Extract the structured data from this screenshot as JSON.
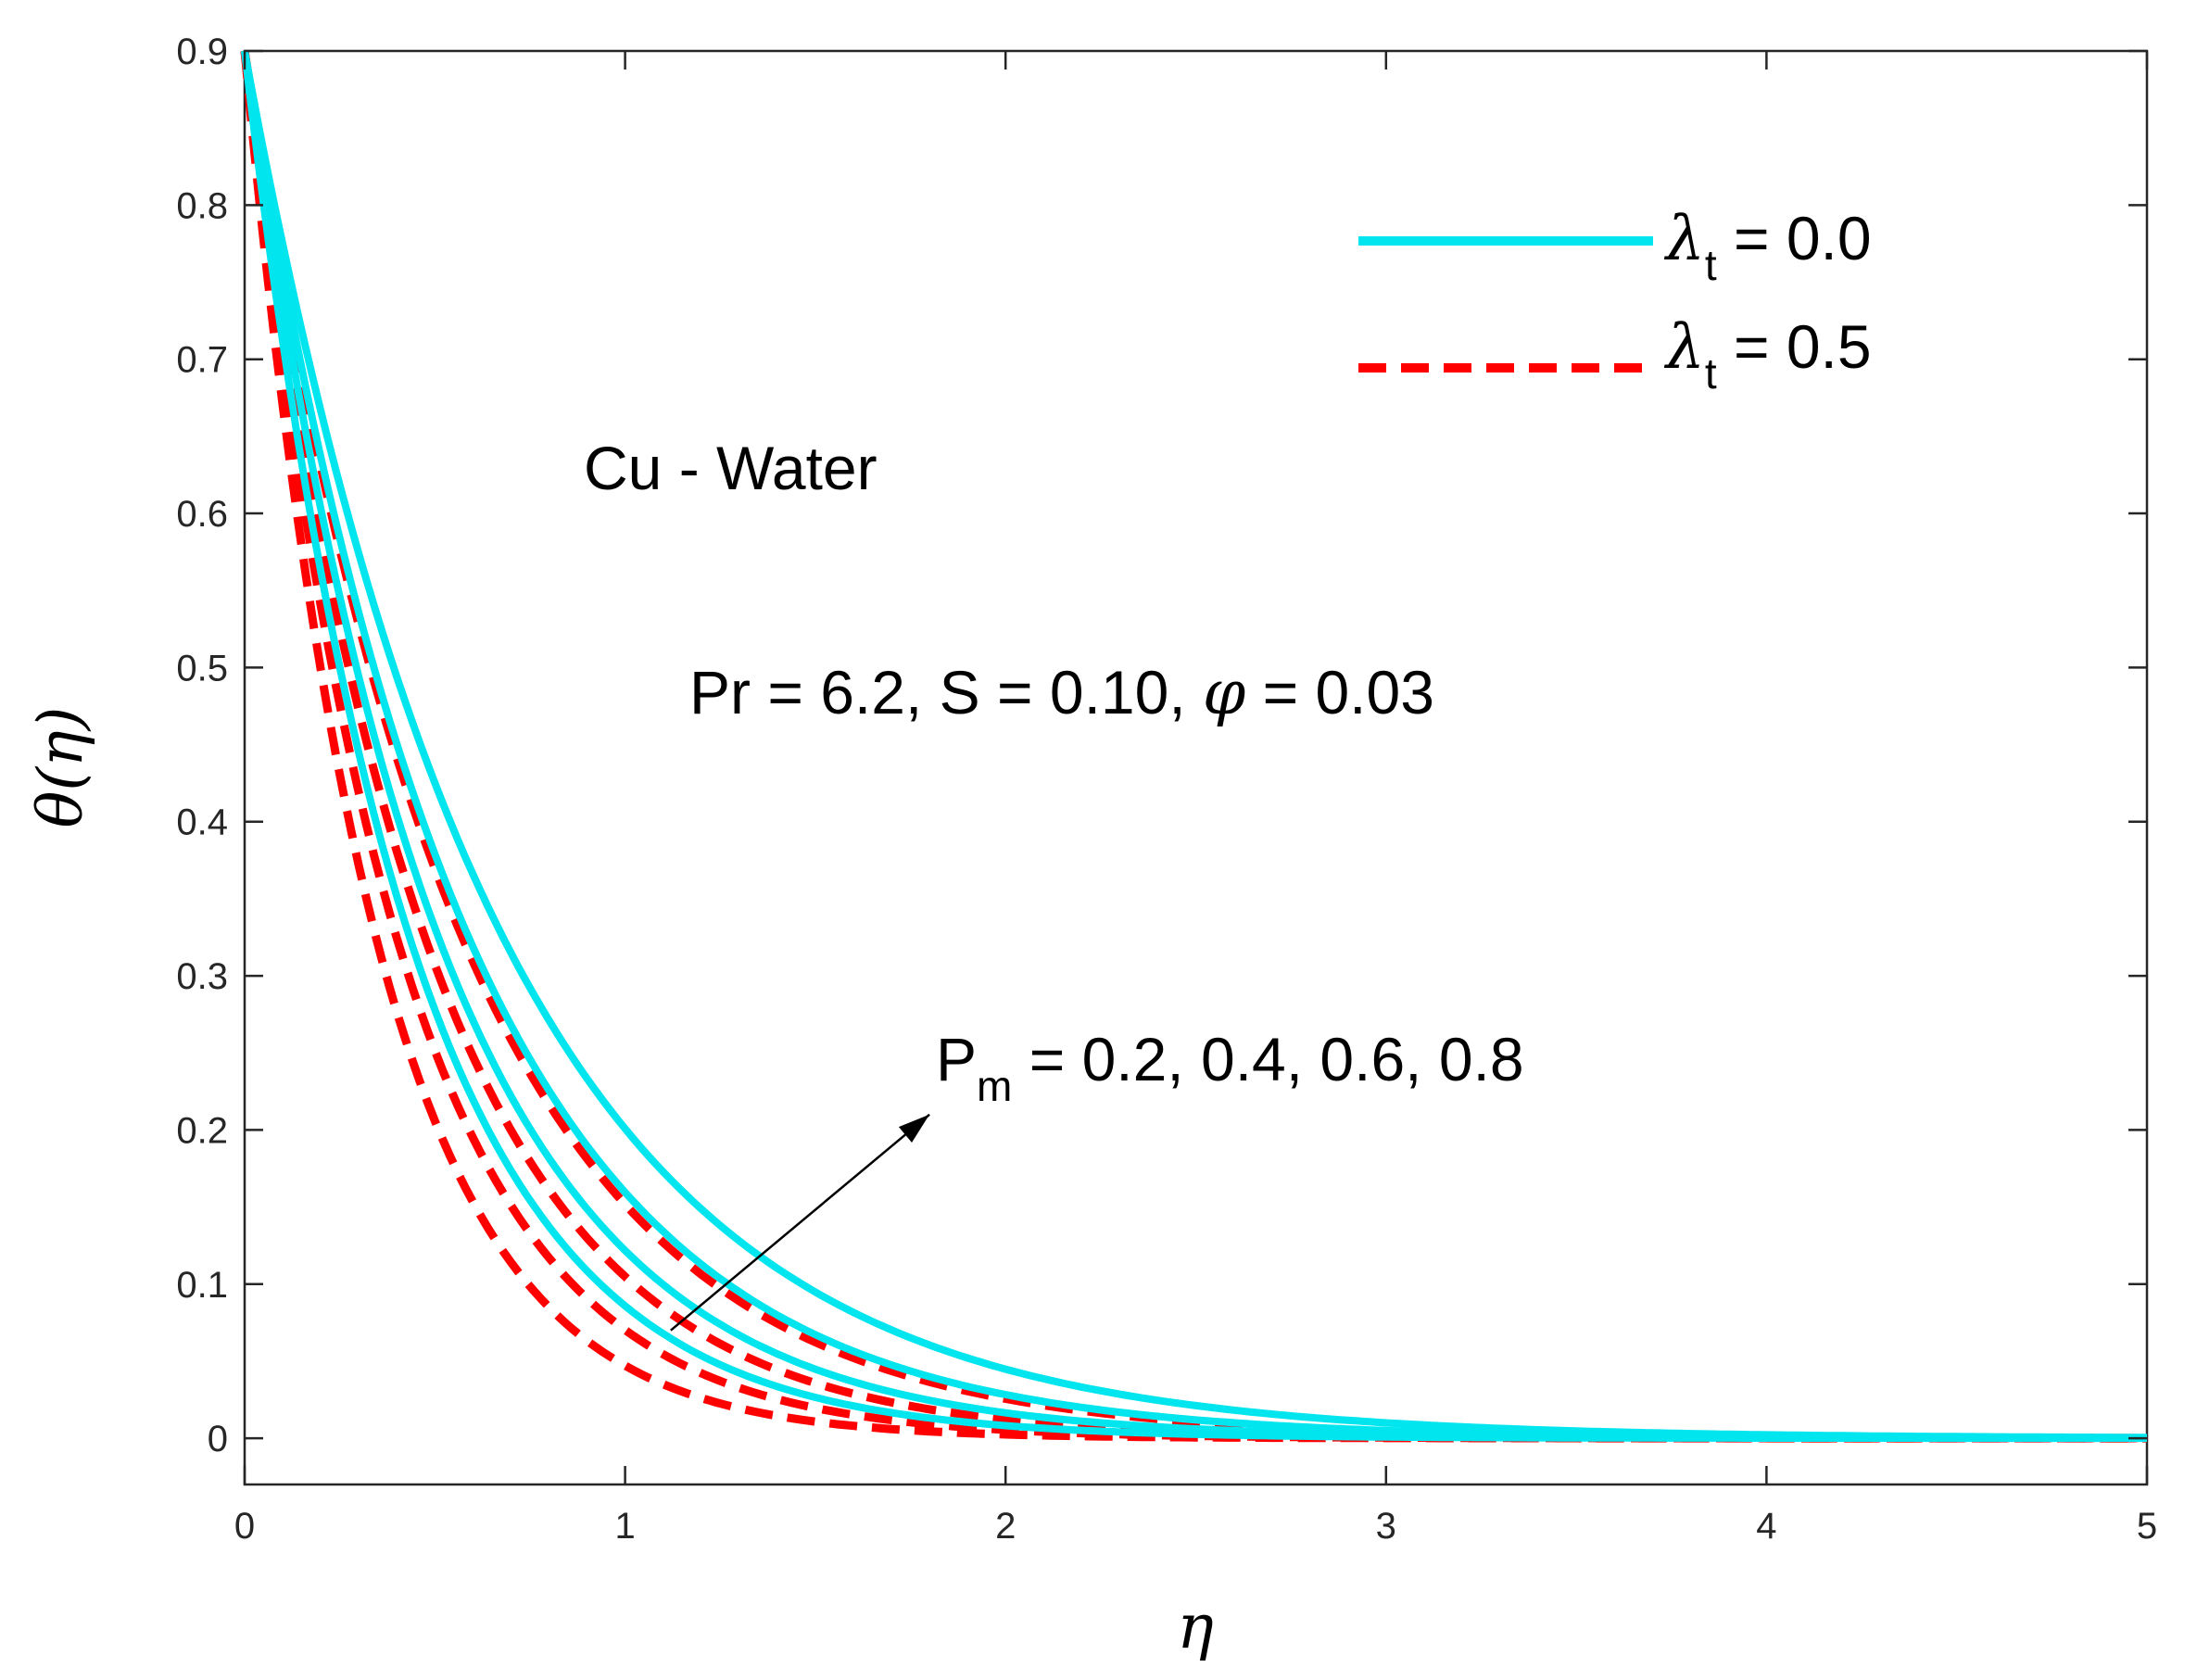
{
  "chart_data": {
    "type": "line",
    "title": "",
    "xlabel": "η",
    "ylabel": "θ(η)",
    "xlim": [
      0,
      5
    ],
    "ylim": [
      -0.03,
      0.9
    ],
    "xticks": [
      0,
      1,
      2,
      3,
      4,
      5
    ],
    "yticks": [
      0,
      0.1,
      0.2,
      0.3,
      0.4,
      0.5,
      0.6,
      0.7,
      0.8,
      0.9
    ],
    "xtick_labels": [
      "0",
      "1",
      "2",
      "3",
      "4",
      "5"
    ],
    "ytick_labels": [
      "0",
      "0.1",
      "0.2",
      "0.3",
      "0.4",
      "0.5",
      "0.6",
      "0.7",
      "0.8",
      "0.9"
    ],
    "grid": false,
    "legend_position": "top-right",
    "legend": [
      {
        "symbol": "λ",
        "sub": "t",
        "rest": " = 0.0",
        "style": "solid",
        "color": "#00e5ee"
      },
      {
        "symbol": "λ",
        "sub": "t",
        "rest": " = 0.5",
        "style": "dashed",
        "color": "#ff0000"
      }
    ],
    "annotations": {
      "fluid": "Cu - Water",
      "params_prefix": "Pr = 6.2, S = 0.10, ",
      "params_phi": "φ",
      "params_suffix": " = 0.03",
      "pm_main": "P",
      "pm_sub": "m",
      "pm_rest": " = 0.2, 0.4, 0.6, 0.8",
      "arrow_from": [
        1.12,
        0.07
      ],
      "arrow_to": [
        1.8,
        0.21
      ]
    },
    "x_samples": [
      0,
      0.25,
      0.5,
      0.75,
      1,
      1.25,
      1.5,
      1.75,
      2,
      2.25,
      2.5,
      2.75,
      3,
      3.25,
      3.5,
      3.75,
      4,
      4.25,
      4.5,
      4.75,
      5
    ],
    "series": [
      {
        "name": "λt = 0.0, Pm = 0.2",
        "group": "lambda_t_0.0",
        "pm": 0.2,
        "decay": 2.35,
        "values": [
          0.9,
          0.5,
          0.278,
          0.154,
          0.086,
          0.048,
          0.026,
          0.015,
          0.008,
          0.005,
          0.003,
          0.001,
          0.001,
          0,
          0,
          0,
          0,
          0,
          0,
          0,
          0
        ]
      },
      {
        "name": "λt = 0.0, Pm = 0.4",
        "group": "lambda_t_0.0",
        "pm": 0.4,
        "decay": 2.0,
        "values": [
          0.9,
          0.546,
          0.331,
          0.201,
          0.122,
          0.074,
          0.045,
          0.027,
          0.016,
          0.01,
          0.006,
          0.004,
          0.002,
          0.001,
          0.001,
          0,
          0,
          0,
          0,
          0,
          0
        ]
      },
      {
        "name": "λt = 0.0, Pm = 0.6",
        "group": "lambda_t_0.0",
        "pm": 0.6,
        "decay": 1.73,
        "values": [
          0.9,
          0.584,
          0.379,
          0.246,
          0.159,
          0.103,
          0.067,
          0.043,
          0.028,
          0.018,
          0.012,
          0.008,
          0.005,
          0.003,
          0.002,
          0.001,
          0.001,
          0.001,
          0,
          0,
          0
        ]
      },
      {
        "name": "λt = 0.0, Pm = 0.8",
        "group": "lambda_t_0.0",
        "pm": 0.8,
        "decay": 1.5,
        "values": [
          0.9,
          0.62,
          0.425,
          0.292,
          0.201,
          0.138,
          0.095,
          0.065,
          0.045,
          0.031,
          0.021,
          0.014,
          0.01,
          0.007,
          0.005,
          0.003,
          0.002,
          0.001,
          0.001,
          0.001,
          0
        ]
      },
      {
        "name": "λt = 0.5, Pm = 0.2",
        "group": "lambda_t_0.5",
        "pm": 0.2,
        "decay": 2.95,
        "values": [
          0.9,
          0.43,
          0.206,
          0.098,
          0.047,
          0.022,
          0.011,
          0.005,
          0.002,
          0.001,
          0.001,
          0,
          0,
          0,
          0,
          0,
          0,
          0,
          0,
          0,
          0
        ]
      },
      {
        "name": "λt = 0.5, Pm = 0.4",
        "group": "lambda_t_0.5",
        "pm": 0.4,
        "decay": 2.55,
        "values": [
          0.9,
          0.475,
          0.251,
          0.132,
          0.07,
          0.037,
          0.019,
          0.01,
          0.005,
          0.003,
          0.002,
          0.001,
          0,
          0,
          0,
          0,
          0,
          0,
          0,
          0,
          0
        ]
      },
      {
        "name": "λt = 0.5, Pm = 0.6",
        "group": "lambda_t_0.5",
        "pm": 0.6,
        "decay": 2.15,
        "values": [
          0.9,
          0.525,
          0.306,
          0.179,
          0.105,
          0.061,
          0.036,
          0.021,
          0.012,
          0.007,
          0.004,
          0.002,
          0.001,
          0.001,
          0,
          0,
          0,
          0,
          0,
          0,
          0
        ]
      },
      {
        "name": "λt = 0.5, Pm = 0.8",
        "group": "lambda_t_0.5",
        "pm": 0.8,
        "decay": 1.78,
        "values": [
          0.9,
          0.578,
          0.369,
          0.237,
          0.152,
          0.097,
          0.062,
          0.04,
          0.026,
          0.016,
          0.01,
          0.007,
          0.004,
          0.003,
          0.002,
          0.001,
          0.001,
          0,
          0,
          0,
          0
        ]
      }
    ]
  },
  "colors": {
    "lambda_t_0.0": "#00e5ee",
    "lambda_t_0.5": "#ff0000",
    "axis": "#262626",
    "arrow": "#000000"
  }
}
